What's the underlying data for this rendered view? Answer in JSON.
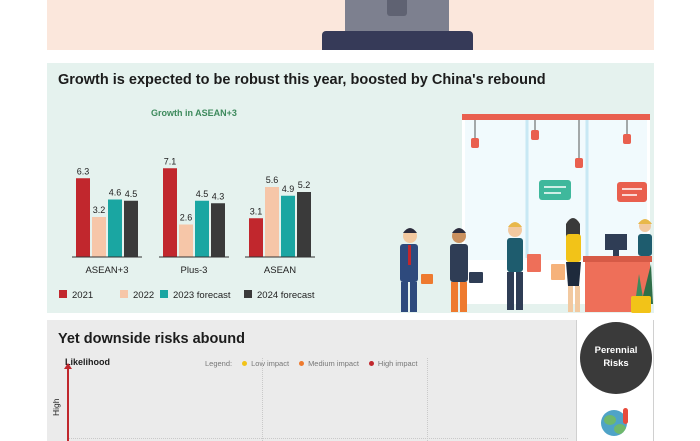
{
  "growth_panel": {
    "title": "Growth is expected to be robust this year, boosted by China's rebound"
  },
  "chart_data": {
    "type": "bar",
    "title": "Growth in ASEAN+3",
    "categories": [
      "ASEAN+3",
      "Plus-3",
      "ASEAN"
    ],
    "series": [
      {
        "name": "2021",
        "values": [
          6.3,
          7.1,
          3.1
        ],
        "color": "#c1272d"
      },
      {
        "name": "2022",
        "values": [
          3.2,
          2.6,
          5.6
        ],
        "color": "#f6c6a8"
      },
      {
        "name": "2023 forecast",
        "values": [
          4.6,
          4.5,
          4.9
        ],
        "color": "#1aa6a2"
      },
      {
        "name": "2024 forecast",
        "values": [
          4.5,
          4.3,
          5.2
        ],
        "color": "#3a3a3a"
      }
    ],
    "ylim": [
      0,
      8
    ],
    "grid": false,
    "legend_position": "bottom"
  },
  "risk_panel": {
    "title": "Yet downside risks abound",
    "y_axis_label": "Likelihood",
    "high_label": "High",
    "legend_label": "Legend:",
    "legend": [
      {
        "label": "Low impact",
        "color": "#f2c318"
      },
      {
        "label": "Medium impact",
        "color": "#ee7a2f"
      },
      {
        "label": "High impact",
        "color": "#c1272d"
      }
    ],
    "perennial_label": "Perennial Risks"
  }
}
